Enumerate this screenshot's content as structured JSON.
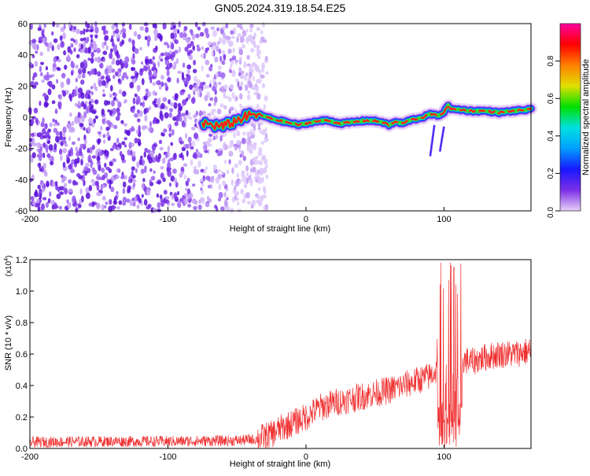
{
  "title": "GN05.2024.319.18.54.E25",
  "chart_data": [
    {
      "type": "heatmap",
      "xlabel": "Height of straight line (km)",
      "ylabel": "Frequency (Hz)",
      "xlim": [
        -200,
        163
      ],
      "ylim": [
        -60,
        60
      ],
      "xticks": [
        -200,
        -100,
        0,
        100
      ],
      "xtick_labels": [
        "-200",
        "-100",
        "0",
        "100"
      ],
      "yticks": [
        -60,
        -40,
        -20,
        0,
        20,
        40,
        60
      ],
      "ytick_labels": [
        "-60",
        "-40",
        "-20",
        "0",
        "20",
        "40",
        "60"
      ],
      "colorbar": {
        "label": "Normalized spectral amplitude",
        "range": [
          0,
          1
        ],
        "ticks": [
          0,
          0.2,
          0.4,
          0.6,
          0.8
        ],
        "tick_labels": [
          "0.0",
          "0.2",
          "0.4",
          "0.6",
          "0.8"
        ],
        "colormap": [
          "#e8d0f8",
          "#7b2fe6",
          "#1818ff",
          "#00a0ff",
          "#00e0e0",
          "#00e000",
          "#e0e000",
          "#ff8000",
          "#ff0000",
          "#ff00a0"
        ]
      },
      "noise_region_x": [
        -200,
        -35
      ],
      "ridge": {
        "x": [
          -75,
          -60,
          -45,
          -35,
          -25,
          -15,
          -5,
          5,
          15,
          25,
          35,
          45,
          55,
          60,
          65,
          70,
          75,
          80,
          85,
          90,
          95,
          100,
          103,
          105,
          110,
          120,
          130,
          140,
          150,
          163
        ],
        "y": [
          -4,
          -6,
          0,
          2,
          -1,
          -3,
          -5,
          -3,
          -2,
          -4,
          -3,
          -2,
          -3,
          -5,
          -3,
          -4,
          -2,
          -1,
          0,
          2,
          1,
          3,
          8,
          5,
          5,
          4,
          4,
          3,
          4,
          5
        ]
      },
      "side_streaks": [
        {
          "x": [
            90,
            93
          ],
          "y": [
            -25,
            -5
          ]
        },
        {
          "x": [
            97,
            100
          ],
          "y": [
            -22,
            -6
          ]
        }
      ]
    },
    {
      "type": "line",
      "xlabel": "Height of straight line (km)",
      "ylabel": "SNR (10 * v/v)",
      "y_multiplier": "(x10",
      "y_multiplier_exp": "4",
      "y_multiplier_close": ")",
      "xlim": [
        -200,
        163
      ],
      "ylim": [
        0,
        1.2
      ],
      "xticks": [
        -200,
        -100,
        0,
        100
      ],
      "xtick_labels": [
        "-200",
        "-100",
        "0",
        "100"
      ],
      "yticks": [
        0,
        0.2,
        0.4,
        0.6,
        0.8,
        1.0,
        1.2
      ],
      "ytick_labels": [
        "0.0",
        "0.2",
        "0.4",
        "0.6",
        "0.8",
        "1.0",
        "1.2"
      ],
      "color": "#f03030",
      "series": [
        {
          "x": [
            -200,
            -150,
            -100,
            -50,
            -35,
            -25,
            -20,
            -10,
            0,
            10,
            20,
            30,
            40,
            50,
            60,
            70,
            80,
            90,
            95,
            100,
            105,
            110,
            115,
            120,
            130,
            140,
            150,
            163
          ],
          "y": [
            0.04,
            0.045,
            0.045,
            0.05,
            0.06,
            0.09,
            0.12,
            0.16,
            0.2,
            0.26,
            0.29,
            0.31,
            0.33,
            0.35,
            0.37,
            0.4,
            0.43,
            0.46,
            0.5,
            0.48,
            0.55,
            0.57,
            0.56,
            0.55,
            0.58,
            0.6,
            0.6,
            0.62
          ]
        }
      ],
      "burst": {
        "x": [
          95,
          113
        ],
        "peak": 1.2
      }
    }
  ]
}
